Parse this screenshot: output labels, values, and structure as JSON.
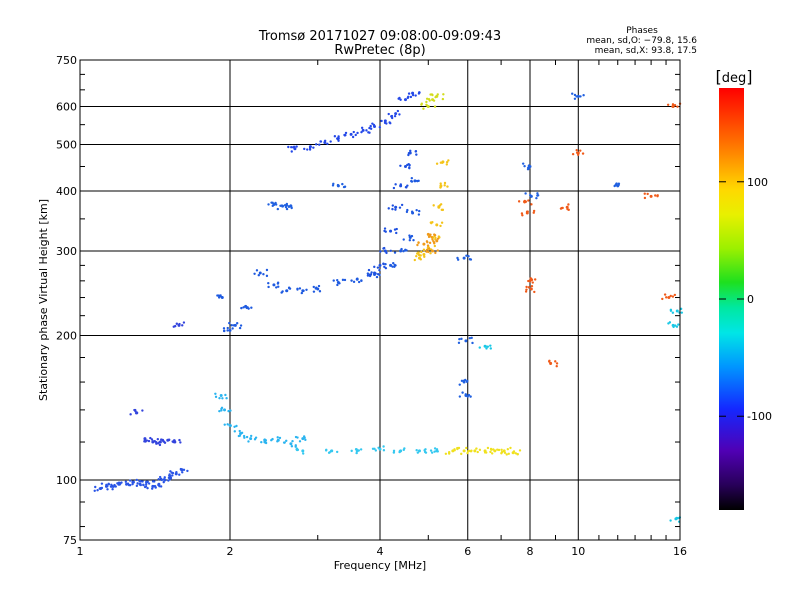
{
  "header": {
    "title_line1": "Tromsø 20171027 09:08:00-09:09:43",
    "title_line2": "RwPretec (8p)",
    "phases_title": "Phases",
    "phases_o": "mean, sd,O: −79.8, 15.6",
    "phases_x": "mean, sd,X:  93.8, 17.5"
  },
  "chart_data": {
    "type": "scatter",
    "xlabel": "Frequency [MHz]",
    "ylabel": "Stationary phase Virtual Height [km]",
    "x_scale": "log",
    "y_scale": "log",
    "xlim": [
      1,
      16
    ],
    "ylim": [
      75,
      750
    ],
    "x_ticks": [
      1,
      2,
      4,
      6,
      8,
      10,
      16
    ],
    "y_ticks": [
      75,
      100,
      200,
      300,
      400,
      500,
      600,
      750
    ],
    "grid": true,
    "colorbar": {
      "label": "deg",
      "range": [
        -180,
        180
      ],
      "ticks": [
        100,
        0,
        -100
      ]
    },
    "series": [
      {
        "phase": -100,
        "color": "#2a55e6",
        "points": [
          [
            1.1,
            96
          ],
          [
            1.13,
            97
          ],
          [
            1.16,
            97
          ],
          [
            1.2,
            98
          ],
          [
            1.24,
            98
          ],
          [
            1.28,
            99
          ],
          [
            1.32,
            98
          ],
          [
            1.36,
            99
          ],
          [
            1.4,
            97
          ],
          [
            1.44,
            98
          ],
          [
            1.48,
            100
          ],
          [
            1.52,
            101
          ],
          [
            1.56,
            103
          ],
          [
            1.6,
            105
          ]
        ]
      },
      {
        "phase": -110,
        "color": "#3344dd",
        "points": [
          [
            1.35,
            122
          ],
          [
            1.4,
            120
          ],
          [
            1.45,
            120
          ],
          [
            1.5,
            121
          ],
          [
            1.55,
            120
          ],
          [
            1.3,
            138
          ],
          [
            1.58,
            210
          ]
        ]
      },
      {
        "phase": -60,
        "color": "#2ab4f0",
        "points": [
          [
            1.92,
            150
          ],
          [
            1.95,
            140
          ],
          [
            2.0,
            130
          ],
          [
            2.1,
            125
          ],
          [
            2.2,
            122
          ],
          [
            2.35,
            120
          ],
          [
            2.5,
            121
          ],
          [
            2.65,
            119
          ],
          [
            2.8,
            122
          ]
        ]
      },
      {
        "phase": -60,
        "color": "#34c8f0",
        "points": [
          [
            2.8,
            115
          ],
          [
            3.2,
            115
          ],
          [
            3.6,
            115
          ],
          [
            4.0,
            116
          ],
          [
            4.4,
            115
          ],
          [
            4.8,
            115
          ],
          [
            5.2,
            115
          ]
        ]
      },
      {
        "phase": 110,
        "color": "#f0e11e",
        "points": [
          [
            5.6,
            115
          ],
          [
            5.9,
            115
          ],
          [
            6.2,
            115
          ],
          [
            6.5,
            115
          ],
          [
            6.8,
            115
          ],
          [
            7.1,
            115
          ],
          [
            7.4,
            114
          ]
        ]
      },
      {
        "phase": -90,
        "color": "#1e5ae0",
        "points": [
          [
            1.93,
            240
          ],
          [
            2.0,
            205
          ],
          [
            2.05,
            210
          ],
          [
            2.15,
            230
          ],
          [
            2.3,
            270
          ],
          [
            2.45,
            255
          ],
          [
            2.6,
            248
          ],
          [
            2.8,
            248
          ],
          [
            3.0,
            250
          ],
          [
            3.3,
            258
          ],
          [
            3.6,
            262
          ],
          [
            3.9,
            268
          ],
          [
            4.2,
            280
          ],
          [
            4.4,
            300
          ],
          [
            4.6,
            320
          ],
          [
            4.65,
            360
          ],
          [
            4.7,
            420
          ]
        ]
      },
      {
        "phase": -80,
        "color": "#2448e8",
        "points": [
          [
            2.7,
            490
          ],
          [
            2.9,
            495
          ],
          [
            3.1,
            505
          ],
          [
            3.3,
            515
          ],
          [
            3.5,
            525
          ],
          [
            3.7,
            535
          ],
          [
            3.9,
            545
          ],
          [
            4.1,
            560
          ],
          [
            4.3,
            580
          ],
          [
            4.5,
            620
          ],
          [
            4.65,
            640
          ]
        ]
      },
      {
        "phase": -90,
        "color": "#1e50e0",
        "points": [
          [
            3.9,
            270
          ],
          [
            4.0,
            280
          ],
          [
            4.1,
            300
          ],
          [
            4.2,
            330
          ],
          [
            4.3,
            370
          ],
          [
            4.4,
            410
          ],
          [
            4.5,
            450
          ],
          [
            4.6,
            480
          ]
        ]
      },
      {
        "phase": 100,
        "color": "#f4c419",
        "points": [
          [
            4.8,
            290
          ],
          [
            4.9,
            295
          ],
          [
            5.0,
            305
          ],
          [
            5.1,
            320
          ],
          [
            5.2,
            340
          ],
          [
            5.25,
            370
          ],
          [
            5.3,
            410
          ],
          [
            5.35,
            460
          ]
        ]
      },
      {
        "phase": 130,
        "color": "#f09a19",
        "points": [
          [
            4.9,
            310
          ],
          [
            5.0,
            325
          ],
          [
            5.1,
            300
          ],
          [
            5.2,
            315
          ]
        ]
      },
      {
        "phase": 80,
        "color": "#d2dc1e",
        "points": [
          [
            5.0,
            600
          ],
          [
            5.1,
            620
          ],
          [
            5.2,
            630
          ]
        ]
      },
      {
        "phase": -100,
        "color": "#2060e0",
        "points": [
          [
            5.9,
            290
          ],
          [
            5.95,
            195
          ],
          [
            5.9,
            160
          ],
          [
            5.95,
            150
          ],
          [
            8.0,
            450
          ],
          [
            8.05,
            390
          ],
          [
            10.0,
            630
          ],
          [
            2.45,
            375
          ],
          [
            2.55,
            372
          ],
          [
            2.65,
            372
          ],
          [
            3.3,
            410
          ],
          [
            12.0,
            410
          ]
        ]
      },
      {
        "phase": 150,
        "color": "#f05a19",
        "points": [
          [
            7.8,
            380
          ],
          [
            7.9,
            360
          ],
          [
            8.0,
            260
          ],
          [
            8.05,
            250
          ],
          [
            9.5,
            370
          ],
          [
            10.0,
            480
          ],
          [
            15.5,
            600
          ],
          [
            15.2,
            240
          ],
          [
            14.0,
            390
          ],
          [
            8.8,
            175
          ]
        ]
      },
      {
        "phase": -40,
        "color": "#19c8e6",
        "points": [
          [
            6.5,
            190
          ],
          [
            15.5,
            210
          ],
          [
            15.8,
            225
          ],
          [
            15.7,
            83
          ]
        ]
      }
    ]
  },
  "colors": {
    "grid": "#000000",
    "frame": "#000000"
  }
}
